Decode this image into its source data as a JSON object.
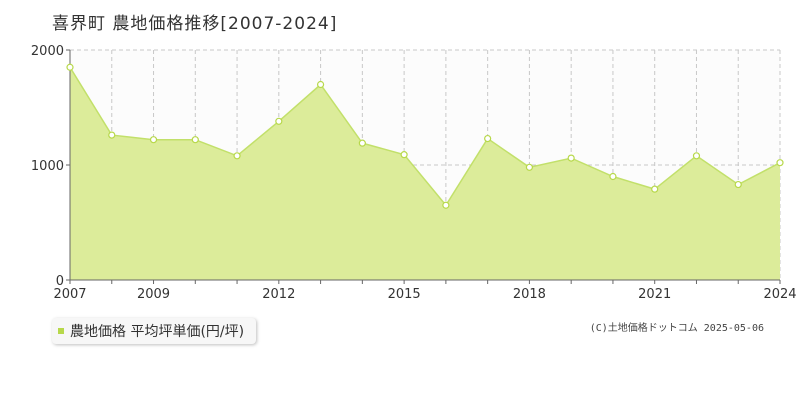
{
  "title": "喜界町 農地価格推移[2007-2024]",
  "legend": {
    "label": "農地価格 平均坪単価(円/坪)"
  },
  "credit": "(C)土地価格ドットコム 2025-05-06",
  "colors": {
    "fill": "#dcec9a",
    "line": "#c2e06a",
    "marker": "#b7d84a",
    "grid": "#c8c8c8"
  },
  "chart_data": {
    "type": "area",
    "x": [
      2007,
      2008,
      2009,
      2010,
      2011,
      2012,
      2013,
      2014,
      2015,
      2016,
      2017,
      2018,
      2019,
      2020,
      2021,
      2022,
      2023,
      2024
    ],
    "values": [
      1850,
      1260,
      1220,
      1220,
      1080,
      1380,
      1700,
      1190,
      1090,
      650,
      1230,
      980,
      1060,
      900,
      790,
      1080,
      830,
      1020
    ],
    "xticks": [
      2007,
      2009,
      2012,
      2015,
      2018,
      2021,
      2024
    ],
    "yticks": [
      0,
      1000,
      2000
    ],
    "ylim": [
      0,
      2000
    ],
    "xlim": [
      2007,
      2024
    ],
    "grid": true,
    "legend_position": "bottom-left"
  }
}
